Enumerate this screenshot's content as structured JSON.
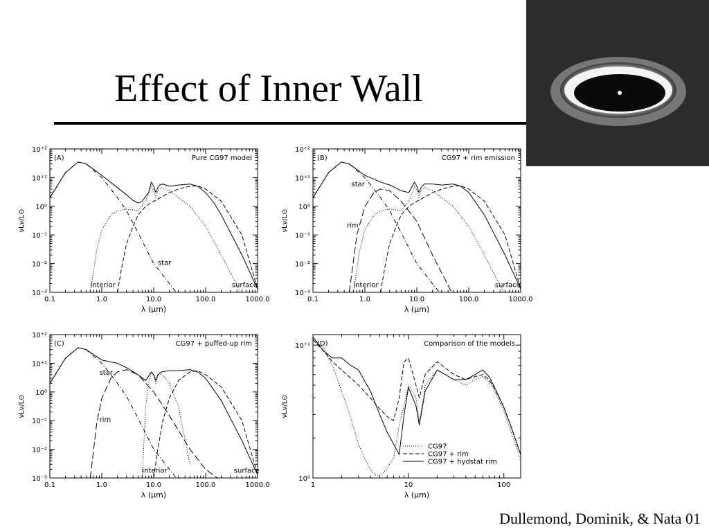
{
  "slide": {
    "title": "Effect of Inner Wall",
    "credit": "Dullemond, Dominik, & Nata 01"
  },
  "colors": {
    "background": "#ffffff",
    "ink": "#000000",
    "image_bg": "#333333"
  },
  "chart_data": [
    {
      "type": "line",
      "panel_label": "(A)",
      "title": "Pure CG97 model",
      "xlabel": "λ (μm)",
      "ylabel": "νLν/L⊙",
      "xscale": "log",
      "yscale": "log",
      "xlim": [
        0.1,
        1000
      ],
      "ylim": [
        0.001,
        100
      ],
      "xticks": [
        "0.1",
        "1.0",
        "10.0",
        "100.0",
        "1000.0"
      ],
      "yticks": [
        "10⁻³",
        "10⁻²",
        "10⁻¹",
        "10⁰",
        "10⁺¹",
        "10⁺²"
      ],
      "annotations": [
        {
          "text": "star",
          "x": 12,
          "y": 0.009
        },
        {
          "text": "interior",
          "x": 0.6,
          "y": 0.0015
        },
        {
          "text": "surface",
          "x": 320,
          "y": 0.0015
        }
      ],
      "series": [
        {
          "style": "solid",
          "x": [
            0.1,
            0.2,
            0.35,
            0.5,
            1,
            2,
            3,
            4,
            5,
            6,
            7,
            8,
            9,
            10,
            11,
            12,
            13,
            15,
            20,
            30,
            50,
            70,
            100,
            150,
            200,
            300,
            500,
            1000
          ],
          "y": [
            2,
            15,
            35,
            30,
            12,
            4.5,
            2.5,
            1.6,
            1.3,
            1.5,
            2.2,
            3,
            7,
            5,
            3,
            4.5,
            5.5,
            6,
            5,
            5.5,
            6,
            5,
            3,
            1.2,
            0.5,
            0.12,
            0.02,
            0.0013
          ]
        },
        {
          "style": "dashdot",
          "x": [
            0.1,
            0.2,
            0.35,
            0.5,
            1,
            2,
            3,
            5,
            10,
            20,
            30
          ],
          "y": [
            2,
            15,
            35,
            30,
            10,
            2,
            0.7,
            0.12,
            0.01,
            0.002,
            0.0008
          ]
        },
        {
          "style": "dotted",
          "x": [
            0.6,
            0.8,
            1,
            1.5,
            2,
            3,
            5,
            7,
            9,
            10,
            11,
            12,
            14,
            20,
            30,
            50,
            100,
            200,
            500
          ],
          "y": [
            0.001,
            0.03,
            0.15,
            0.5,
            0.7,
            0.8,
            0.7,
            1.5,
            5,
            3.5,
            2,
            3.5,
            4.5,
            3.5,
            2,
            1,
            0.2,
            0.02,
            0.0008
          ]
        },
        {
          "style": "dashed",
          "x": [
            2,
            2.5,
            3,
            4,
            5,
            7,
            10,
            15,
            20,
            30,
            50,
            70,
            100,
            200,
            500,
            1000
          ],
          "y": [
            0.001,
            0.01,
            0.05,
            0.2,
            0.5,
            1,
            1.5,
            2.2,
            3,
            4,
            5,
            5.2,
            4,
            1.5,
            0.1,
            0.0013
          ]
        }
      ]
    },
    {
      "type": "line",
      "panel_label": "(B)",
      "title": "CG97 + rim emission",
      "xlabel": "λ (μm)",
      "ylabel": "νLν/L⊙",
      "xscale": "log",
      "yscale": "log",
      "xlim": [
        0.1,
        1000
      ],
      "ylim": [
        0.001,
        100
      ],
      "xticks": [
        "0.1",
        "1.0",
        "10.0",
        "100.0",
        "1000.0"
      ],
      "yticks": [
        "10⁻³",
        "10⁻²",
        "10⁻¹",
        "10⁰",
        "10⁺¹",
        "10⁺²"
      ],
      "annotations": [
        {
          "text": "star",
          "x": 0.55,
          "y": 5
        },
        {
          "text": "rim",
          "x": 0.45,
          "y": 0.18
        },
        {
          "text": "interior",
          "x": 0.6,
          "y": 0.0015
        },
        {
          "text": "surface",
          "x": 320,
          "y": 0.0015
        }
      ],
      "series": [
        {
          "style": "solid",
          "x": [
            0.1,
            0.2,
            0.35,
            0.5,
            1,
            2,
            3,
            5,
            7,
            9,
            10,
            11,
            12,
            14,
            20,
            30,
            50,
            70,
            100,
            200,
            500,
            1000
          ],
          "y": [
            2,
            15,
            35,
            30,
            12,
            7,
            5.5,
            3.5,
            3,
            7,
            5,
            3,
            4.5,
            6,
            6,
            5.5,
            6,
            5,
            3,
            0.5,
            0.02,
            0.0013
          ]
        },
        {
          "style": "dashdot",
          "x": [
            0.1,
            0.2,
            0.35,
            0.5,
            1,
            2,
            3,
            5,
            10,
            20,
            30
          ],
          "y": [
            2,
            15,
            35,
            30,
            10,
            2,
            0.7,
            0.12,
            0.01,
            0.002,
            0.0008
          ]
        },
        {
          "style": "longdash",
          "x": [
            0.5,
            0.7,
            1,
            1.5,
            2,
            3,
            5,
            10,
            20,
            50
          ],
          "y": [
            0.001,
            0.1,
            1,
            3,
            4,
            3.5,
            1.5,
            0.3,
            0.02,
            0.0008
          ]
        },
        {
          "style": "dotted",
          "x": [
            0.6,
            0.8,
            1,
            1.5,
            2,
            3,
            5,
            7,
            9,
            10,
            11,
            12,
            14,
            20,
            30,
            50,
            100,
            200,
            500
          ],
          "y": [
            0.001,
            0.03,
            0.15,
            0.5,
            0.7,
            0.8,
            0.7,
            1.5,
            5,
            3.5,
            2,
            3.5,
            4.5,
            3.5,
            2,
            1,
            0.2,
            0.02,
            0.0008
          ]
        },
        {
          "style": "dashed",
          "x": [
            2,
            2.5,
            3,
            4,
            5,
            7,
            10,
            15,
            20,
            30,
            50,
            70,
            100,
            200,
            500,
            1000
          ],
          "y": [
            0.001,
            0.01,
            0.05,
            0.2,
            0.5,
            1,
            1.5,
            2.2,
            3,
            4,
            5,
            5.2,
            4,
            1.5,
            0.1,
            0.0013
          ]
        }
      ]
    },
    {
      "type": "line",
      "panel_label": "(C)",
      "title": "CG97 + puffed-up rim",
      "xlabel": "λ (μm)",
      "ylabel": "νLν/L⊙",
      "xscale": "log",
      "yscale": "log",
      "xlim": [
        0.1,
        1000
      ],
      "ylim": [
        0.001,
        100
      ],
      "xticks": [
        "0.1",
        "1.0",
        "10.0",
        "100.0",
        "1000.0"
      ],
      "yticks": [
        "10⁻³",
        "10⁻²",
        "10⁻¹",
        "10⁰",
        "10⁺¹",
        "10⁺²"
      ],
      "annotations": [
        {
          "text": "star",
          "x": 0.9,
          "y": 4
        },
        {
          "text": "rim",
          "x": 0.9,
          "y": 0.09
        },
        {
          "text": "interior",
          "x": 6,
          "y": 0.0015
        },
        {
          "text": "surface",
          "x": 350,
          "y": 0.0015
        }
      ],
      "series": [
        {
          "style": "solid",
          "x": [
            0.1,
            0.2,
            0.35,
            0.5,
            1,
            2,
            3,
            5,
            7,
            9,
            10,
            11,
            12,
            14,
            20,
            30,
            50,
            70,
            100,
            200,
            500,
            1000
          ],
          "y": [
            2,
            15,
            35,
            30,
            13,
            10,
            7,
            4,
            2.5,
            5,
            4,
            2.5,
            4,
            5,
            5.5,
            5.5,
            6,
            5,
            3,
            0.5,
            0.02,
            0.0013
          ]
        },
        {
          "style": "dashdot",
          "x": [
            0.1,
            0.2,
            0.35,
            0.5,
            1,
            2,
            3,
            5,
            10,
            20,
            30
          ],
          "y": [
            2,
            15,
            35,
            30,
            10,
            2,
            0.7,
            0.12,
            0.01,
            0.002,
            0.0008
          ]
        },
        {
          "style": "longdash",
          "x": [
            0.6,
            0.8,
            1,
            1.5,
            2,
            3,
            5,
            10,
            20,
            50,
            100,
            200
          ],
          "y": [
            0.001,
            0.08,
            0.6,
            3,
            5,
            6,
            4,
            1,
            0.15,
            0.01,
            0.002,
            0.0008
          ]
        },
        {
          "style": "dotted",
          "x": [
            6,
            7,
            8,
            9,
            10,
            11,
            12,
            14,
            20,
            30,
            50
          ],
          "y": [
            0.001,
            0.3,
            2,
            5,
            3.5,
            2,
            3.5,
            4.5,
            2,
            0.3,
            0.003
          ]
        },
        {
          "style": "dashed",
          "x": [
            10,
            12,
            15,
            20,
            30,
            50,
            70,
            100,
            200,
            500,
            1000
          ],
          "y": [
            0.001,
            0.01,
            0.1,
            0.6,
            2.5,
            5,
            5.5,
            4,
            1.5,
            0.1,
            0.0013
          ]
        }
      ]
    },
    {
      "type": "line",
      "panel_label": "(D)",
      "title": "Comparison of the models",
      "xlabel": "λ (μm)",
      "ylabel": "νLν/L⊙",
      "xscale": "log",
      "yscale": "log",
      "xlim": [
        1,
        150
      ],
      "ylim": [
        1,
        12
      ],
      "xticks": [
        "1",
        "10",
        "100"
      ],
      "yticks": [
        "10⁰",
        "10⁺¹"
      ],
      "series": [
        {
          "name": "CG97",
          "style": "dotted",
          "x": [
            1,
            1.3,
            1.6,
            2,
            2.5,
            3,
            3.5,
            4,
            4.5,
            5,
            5.5,
            6,
            7,
            8,
            9,
            10,
            12,
            13,
            15,
            20,
            30,
            40,
            50,
            60,
            70,
            80,
            100,
            120,
            150
          ],
          "y": [
            11,
            9.5,
            7,
            4.5,
            2.8,
            1.8,
            1.4,
            1.15,
            1.05,
            1.05,
            1.1,
            1.2,
            1.4,
            2.5,
            3.5,
            5,
            4,
            2.6,
            5,
            6.5,
            5.5,
            5,
            5.5,
            5.8,
            5.3,
            4.5,
            3.2,
            2.2,
            1.4
          ]
        },
        {
          "name": "CG97 + rim",
          "style": "dashed",
          "x": [
            1,
            1.3,
            1.6,
            2,
            3,
            4,
            5,
            6,
            7,
            8,
            9,
            10,
            12,
            13,
            15,
            20,
            30,
            40,
            50,
            60,
            70,
            80,
            100,
            120,
            150
          ],
          "y": [
            11,
            9,
            7.5,
            6.5,
            5,
            4,
            3.3,
            2.9,
            2.7,
            4,
            7.5,
            8,
            5,
            4,
            6,
            7.5,
            6,
            5.5,
            5.8,
            6,
            5.5,
            4.7,
            3.4,
            2.4,
            1.5
          ]
        },
        {
          "name": "CG97 + hydstat rim",
          "style": "solid",
          "x": [
            1,
            1.3,
            1.6,
            2,
            2.5,
            3,
            4,
            5,
            6,
            7,
            8,
            9,
            10,
            12,
            13,
            15,
            20,
            30,
            40,
            50,
            60,
            70,
            80,
            100,
            120,
            150
          ],
          "y": [
            11.5,
            9,
            8,
            8,
            7,
            6.5,
            4.5,
            3,
            2.2,
            1.8,
            1.5,
            3,
            4.8,
            3.5,
            2.5,
            4.5,
            6.5,
            5.5,
            5.5,
            6,
            6.5,
            5.8,
            4.8,
            3.4,
            2.4,
            1.5
          ]
        }
      ]
    }
  ]
}
